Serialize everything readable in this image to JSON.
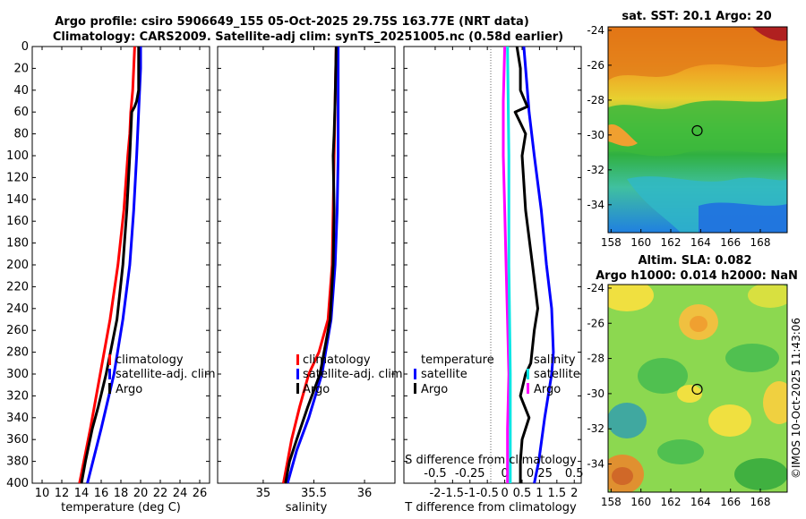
{
  "title_line1": "Argo profile: csiro 5906649_155 05-Oct-2025 29.75S 163.77E (NRT data)",
  "title_line2": "Climatology: CARS2009. Satellite-adj clim: synTS_20251005.nc (0.58d earlier)",
  "credit": "©IMOS 10-Oct-2025 11:43:06",
  "colors": {
    "climatology": "#ff0000",
    "satellite": "#0000ff",
    "argo": "#000000",
    "magenta": "#ff00ff",
    "cyan": "#00e5e5"
  },
  "chart_data": [
    {
      "type": "line",
      "name": "temperature-profile",
      "xlabel": "temperature (deg C)",
      "ylabel": "",
      "xlim": [
        9,
        27
      ],
      "ylim": [
        400,
        0
      ],
      "xticks": [
        "10",
        "12",
        "14",
        "16",
        "18",
        "20",
        "22",
        "24",
        "26"
      ],
      "xtick_values": [
        10,
        12,
        14,
        16,
        18,
        20,
        22,
        24,
        26
      ],
      "yticks": [
        "0",
        "20",
        "40",
        "60",
        "80",
        "100",
        "120",
        "140",
        "160",
        "180",
        "200",
        "220",
        "240",
        "260",
        "280",
        "300",
        "320",
        "340",
        "360",
        "380",
        "400"
      ],
      "ytick_values": [
        0,
        20,
        40,
        60,
        80,
        100,
        120,
        140,
        160,
        180,
        200,
        220,
        240,
        260,
        280,
        300,
        320,
        340,
        360,
        380,
        400
      ],
      "legend": [
        "climatology",
        "satellite-adj. clim",
        "Argo"
      ],
      "series": [
        {
          "name": "climatology",
          "color": "#ff0000",
          "depth": [
            0,
            20,
            40,
            60,
            80,
            100,
            150,
            200,
            250,
            300,
            350,
            400
          ],
          "values": [
            19.4,
            19.3,
            19.2,
            19.0,
            18.9,
            18.7,
            18.3,
            17.7,
            16.9,
            15.9,
            14.9,
            13.8
          ]
        },
        {
          "name": "satellite-adj. clim",
          "color": "#0000ff",
          "depth": [
            0,
            20,
            40,
            60,
            80,
            100,
            150,
            200,
            250,
            300,
            350,
            400
          ],
          "values": [
            20.0,
            20.0,
            19.9,
            19.8,
            19.7,
            19.6,
            19.3,
            18.9,
            18.2,
            17.3,
            16.0,
            14.6
          ]
        },
        {
          "name": "Argo",
          "color": "#000000",
          "depth": [
            0,
            20,
            40,
            50,
            55,
            60,
            80,
            100,
            150,
            200,
            250,
            300,
            330,
            350,
            380,
            400
          ],
          "values": [
            19.8,
            19.8,
            19.8,
            19.6,
            19.4,
            19.1,
            19.0,
            18.9,
            18.6,
            18.2,
            17.6,
            16.5,
            15.7,
            15.1,
            14.4,
            14.0
          ]
        }
      ]
    },
    {
      "type": "line",
      "name": "salinity-profile",
      "xlabel": "salinity",
      "xlim": [
        34.55,
        36.3
      ],
      "ylim": [
        400,
        0
      ],
      "xticks": [
        "35",
        "35.5",
        "36"
      ],
      "xtick_values": [
        35,
        35.5,
        36
      ],
      "legend": [
        "climatology",
        "satellite-adj. clim",
        "Argo"
      ],
      "series": [
        {
          "name": "climatology",
          "color": "#ff0000",
          "depth": [
            0,
            50,
            100,
            150,
            200,
            250,
            280,
            300,
            330,
            360,
            380,
            400
          ],
          "values": [
            35.72,
            35.71,
            35.7,
            35.69,
            35.68,
            35.64,
            35.55,
            35.45,
            35.36,
            35.28,
            35.24,
            35.2
          ]
        },
        {
          "name": "satellite-adj. clim",
          "color": "#0000ff",
          "depth": [
            0,
            50,
            100,
            150,
            200,
            250,
            300,
            340,
            370,
            400
          ],
          "values": [
            35.74,
            35.74,
            35.74,
            35.73,
            35.71,
            35.67,
            35.58,
            35.45,
            35.33,
            35.24
          ]
        },
        {
          "name": "Argo",
          "color": "#000000",
          "depth": [
            0,
            50,
            80,
            100,
            150,
            200,
            250,
            300,
            330,
            360,
            380,
            400
          ],
          "values": [
            35.72,
            35.71,
            35.7,
            35.69,
            35.7,
            35.69,
            35.66,
            35.56,
            35.44,
            35.33,
            35.26,
            35.22
          ]
        }
      ]
    },
    {
      "type": "line",
      "name": "difference-profile",
      "xlabel": "T difference from climatology",
      "top_label": "S difference from climatology",
      "xlim": [
        -2.9,
        2.2
      ],
      "ylim": [
        400,
        0
      ],
      "xticks": [
        "-2",
        "-1.5",
        "-1",
        "-0.5",
        "0",
        "0.5",
        "1",
        "1.5",
        "2"
      ],
      "xtick_values": [
        -2,
        -1.5,
        -1,
        -0.5,
        0,
        0.5,
        1,
        1.5,
        2
      ],
      "top_xticks": [
        "-0.5",
        "-0.25",
        "0",
        "0.25",
        "0.5"
      ],
      "top_xtick_values": [
        -0.5,
        -0.25,
        0,
        0.25,
        0.5
      ],
      "top_xlim": [
        -0.725,
        0.55
      ],
      "legend_left_title": "temperature",
      "legend_right_title": "salinity",
      "legend_left": [
        "satellite",
        "Argo"
      ],
      "legend_right": [
        "satellite",
        "Argo"
      ],
      "series": [
        {
          "name": "T satellite",
          "color": "#0000ff",
          "depth": [
            0,
            20,
            60,
            100,
            150,
            200,
            240,
            280,
            300,
            340,
            380,
            400
          ],
          "values": [
            0.55,
            0.6,
            0.7,
            0.85,
            1.05,
            1.2,
            1.35,
            1.4,
            1.35,
            1.15,
            0.98,
            0.85
          ]
        },
        {
          "name": "T Argo",
          "color": "#000000",
          "depth": [
            0,
            20,
            40,
            55,
            60,
            70,
            80,
            100,
            150,
            200,
            240,
            260,
            290,
            300,
            320,
            340,
            360,
            380,
            400
          ],
          "values": [
            0.35,
            0.45,
            0.45,
            0.65,
            0.3,
            0.45,
            0.6,
            0.5,
            0.6,
            0.8,
            0.95,
            0.85,
            0.75,
            0.6,
            0.45,
            0.7,
            0.5,
            0.45,
            0.45
          ]
        },
        {
          "name": "S Argo",
          "color": "#ff00ff",
          "depth": [
            0,
            50,
            100,
            150,
            200,
            250,
            300,
            350,
            380,
            400
          ],
          "values": [
            0.0,
            -0.01,
            -0.01,
            0.0,
            0.01,
            0.02,
            0.03,
            0.02,
            0.02,
            0.02
          ]
        },
        {
          "name": "S satellite",
          "color": "#00e5e5",
          "depth": [
            0,
            100,
            200,
            300,
            400
          ],
          "values": [
            0.02,
            0.03,
            0.03,
            0.04,
            0.04
          ]
        }
      ]
    },
    {
      "type": "heatmap",
      "name": "sst-map",
      "title": "sat. SST: 20.1 Argo: 20",
      "xticks": [
        "158",
        "160",
        "162",
        "164",
        "166",
        "168"
      ],
      "xtick_values": [
        158,
        160,
        162,
        164,
        166,
        168
      ],
      "yticks": [
        "-24",
        "-26",
        "-28",
        "-30",
        "-32",
        "-34"
      ],
      "ytick_values": [
        -24,
        -26,
        -28,
        -30,
        -32,
        -34
      ],
      "xlim": [
        157.8,
        169.8
      ],
      "ylim": [
        -35.6,
        -23.8
      ],
      "marker": {
        "lon": 163.77,
        "lat": -29.75
      }
    },
    {
      "type": "heatmap",
      "name": "sla-map",
      "title": "Altim. SLA: 0.082",
      "subtitle": "Argo h1000: 0.014 h2000: NaN",
      "xticks": [
        "158",
        "160",
        "162",
        "164",
        "166",
        "168"
      ],
      "xtick_values": [
        158,
        160,
        162,
        164,
        166,
        168
      ],
      "yticks": [
        "-24",
        "-26",
        "-28",
        "-30",
        "-32",
        "-34"
      ],
      "ytick_values": [
        -24,
        -26,
        -28,
        -30,
        -32,
        -34
      ],
      "xlim": [
        157.8,
        169.8
      ],
      "ylim": [
        -35.6,
        -23.8
      ],
      "marker": {
        "lon": 163.77,
        "lat": -29.75
      }
    }
  ]
}
